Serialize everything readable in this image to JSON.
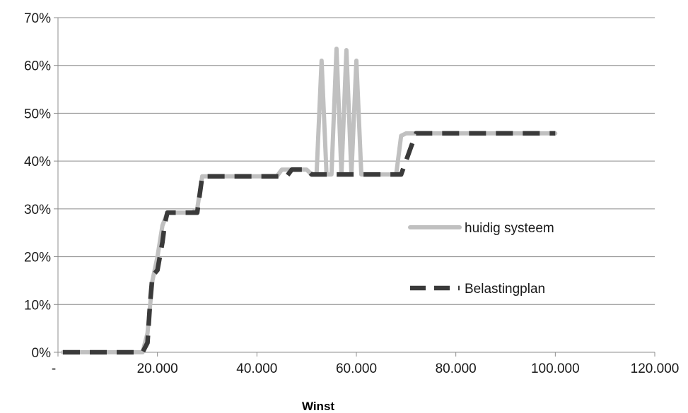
{
  "chart_data": {
    "type": "line",
    "xlabel": "Winst",
    "ylabel": "",
    "title": "",
    "xlim": [
      0,
      120000
    ],
    "ylim": [
      0,
      0.7
    ],
    "x_ticks": [
      {
        "value": 0,
        "label": "-"
      },
      {
        "value": 20000,
        "label": "20.000"
      },
      {
        "value": 40000,
        "label": "40.000"
      },
      {
        "value": 60000,
        "label": "60.000"
      },
      {
        "value": 80000,
        "label": "80.000"
      },
      {
        "value": 100000,
        "label": "100.000"
      },
      {
        "value": 120000,
        "label": "120.000"
      }
    ],
    "y_ticks": [
      {
        "value": 0,
        "label": "0%"
      },
      {
        "value": 0.1,
        "label": "10%"
      },
      {
        "value": 0.2,
        "label": "20%"
      },
      {
        "value": 0.3,
        "label": "30%"
      },
      {
        "value": 0.4,
        "label": "40%"
      },
      {
        "value": 0.5,
        "label": "50%"
      },
      {
        "value": 0.6,
        "label": "60%"
      },
      {
        "value": 0.7,
        "label": "70%"
      }
    ],
    "grid": "horizontal",
    "legend_position": "right-middle",
    "series": [
      {
        "name": "huidig systeem",
        "style": "solid",
        "color": "#c0c0c0",
        "points": [
          [
            1000,
            0.0
          ],
          [
            17000,
            0.0
          ],
          [
            18000,
            0.04
          ],
          [
            19000,
            0.15
          ],
          [
            20000,
            0.2
          ],
          [
            21000,
            0.265
          ],
          [
            22000,
            0.292
          ],
          [
            27000,
            0.292
          ],
          [
            28000,
            0.3
          ],
          [
            29000,
            0.368
          ],
          [
            44000,
            0.368
          ],
          [
            45000,
            0.382
          ],
          [
            50000,
            0.382
          ],
          [
            51000,
            0.372
          ],
          [
            52000,
            0.372
          ],
          [
            53000,
            0.61
          ],
          [
            54000,
            0.372
          ],
          [
            55000,
            0.372
          ],
          [
            56000,
            0.635
          ],
          [
            57000,
            0.372
          ],
          [
            58000,
            0.632
          ],
          [
            59000,
            0.372
          ],
          [
            60000,
            0.61
          ],
          [
            61000,
            0.372
          ],
          [
            68000,
            0.372
          ],
          [
            69000,
            0.453
          ],
          [
            70000,
            0.458
          ],
          [
            100000,
            0.458
          ]
        ]
      },
      {
        "name": "Belastingplan",
        "style": "dashed",
        "color": "#3a3a3a",
        "points": [
          [
            1000,
            0.0
          ],
          [
            17000,
            0.0
          ],
          [
            18000,
            0.02
          ],
          [
            18500,
            0.1
          ],
          [
            19000,
            0.16
          ],
          [
            20000,
            0.172
          ],
          [
            21000,
            0.23
          ],
          [
            21500,
            0.27
          ],
          [
            22000,
            0.292
          ],
          [
            28000,
            0.292
          ],
          [
            29000,
            0.368
          ],
          [
            46000,
            0.368
          ],
          [
            47000,
            0.382
          ],
          [
            50000,
            0.382
          ],
          [
            51000,
            0.372
          ],
          [
            69000,
            0.372
          ],
          [
            71000,
            0.43
          ],
          [
            72000,
            0.458
          ],
          [
            100000,
            0.458
          ]
        ]
      }
    ]
  }
}
